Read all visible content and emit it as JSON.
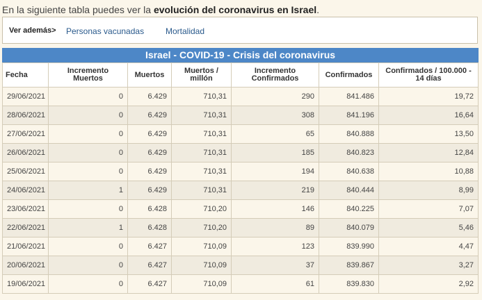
{
  "intro": {
    "before": "En la siguiente tabla puedes ver la ",
    "bold": "evolución del coronavirus en Israel",
    "after": "."
  },
  "see_also": {
    "label": "Ver además>",
    "links": [
      "Personas vacunadas",
      "Mortalidad"
    ]
  },
  "table": {
    "caption": "Israel - COVID-19 - Crisis del coronavirus",
    "headers": [
      "Fecha",
      "Incremento Muertos",
      "Muertos",
      "Muertos / millón",
      "Incremento Confirmados",
      "Confirmados",
      "Confirmados / 100.000 - 14 días"
    ],
    "rows": [
      [
        "29/06/2021",
        "0",
        "6.429",
        "710,31",
        "290",
        "841.486",
        "19,72"
      ],
      [
        "28/06/2021",
        "0",
        "6.429",
        "710,31",
        "308",
        "841.196",
        "16,64"
      ],
      [
        "27/06/2021",
        "0",
        "6.429",
        "710,31",
        "65",
        "840.888",
        "13,50"
      ],
      [
        "26/06/2021",
        "0",
        "6.429",
        "710,31",
        "185",
        "840.823",
        "12,84"
      ],
      [
        "25/06/2021",
        "0",
        "6.429",
        "710,31",
        "194",
        "840.638",
        "10,88"
      ],
      [
        "24/06/2021",
        "1",
        "6.429",
        "710,31",
        "219",
        "840.444",
        "8,99"
      ],
      [
        "23/06/2021",
        "0",
        "6.428",
        "710,20",
        "146",
        "840.225",
        "7,07"
      ],
      [
        "22/06/2021",
        "1",
        "6.428",
        "710,20",
        "89",
        "840.079",
        "5,46"
      ],
      [
        "21/06/2021",
        "0",
        "6.427",
        "710,09",
        "123",
        "839.990",
        "4,47"
      ],
      [
        "20/06/2021",
        "0",
        "6.427",
        "710,09",
        "37",
        "839.867",
        "3,27"
      ],
      [
        "19/06/2021",
        "0",
        "6.427",
        "710,09",
        "61",
        "839.830",
        "2,92"
      ]
    ]
  }
}
